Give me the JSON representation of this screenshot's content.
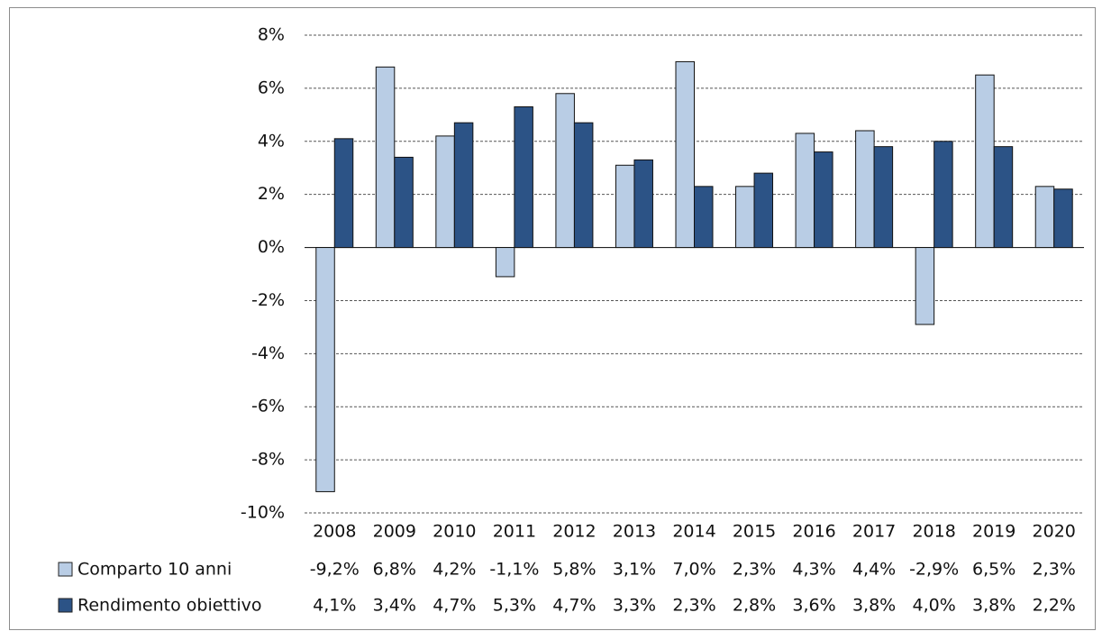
{
  "chart_data": {
    "type": "bar",
    "categories": [
      "2008",
      "2009",
      "2010",
      "2011",
      "2012",
      "2013",
      "2014",
      "2015",
      "2016",
      "2017",
      "2018",
      "2019",
      "2020"
    ],
    "series": [
      {
        "name": "Comparto 10 anni",
        "color": "#b9cde5",
        "values": [
          -9.2,
          6.8,
          4.2,
          -1.1,
          5.8,
          3.1,
          7.0,
          2.3,
          4.3,
          4.4,
          -2.9,
          6.5,
          2.3
        ],
        "value_labels": [
          "-9,2%",
          "6,8%",
          "4,2%",
          "-1,1%",
          "5,8%",
          "3,1%",
          "7,0%",
          "2,3%",
          "4,3%",
          "4,4%",
          "-2,9%",
          "6,5%",
          "2,3%"
        ]
      },
      {
        "name": "Rendimento obiettivo",
        "color": "#2c5386",
        "values": [
          4.1,
          3.4,
          4.7,
          5.3,
          4.7,
          3.3,
          2.3,
          2.8,
          3.6,
          3.8,
          4.0,
          3.8,
          2.2
        ],
        "value_labels": [
          "4,1%",
          "3,4%",
          "4,7%",
          "5,3%",
          "4,7%",
          "3,3%",
          "2,3%",
          "2,8%",
          "3,6%",
          "3,8%",
          "4,0%",
          "3,8%",
          "2,2%"
        ]
      }
    ],
    "ylim": [
      -10,
      8
    ],
    "yticks": [
      {
        "value": -10,
        "label": "-10%"
      },
      {
        "value": -8,
        "label": "-8%"
      },
      {
        "value": -6,
        "label": "-6%"
      },
      {
        "value": -4,
        "label": "-4%"
      },
      {
        "value": -2,
        "label": "-2%"
      },
      {
        "value": 0,
        "label": "0%"
      },
      {
        "value": 2,
        "label": "2%"
      },
      {
        "value": 4,
        "label": "4%"
      },
      {
        "value": 6,
        "label": "6%"
      },
      {
        "value": 8,
        "label": "8%"
      }
    ],
    "grid": true
  }
}
